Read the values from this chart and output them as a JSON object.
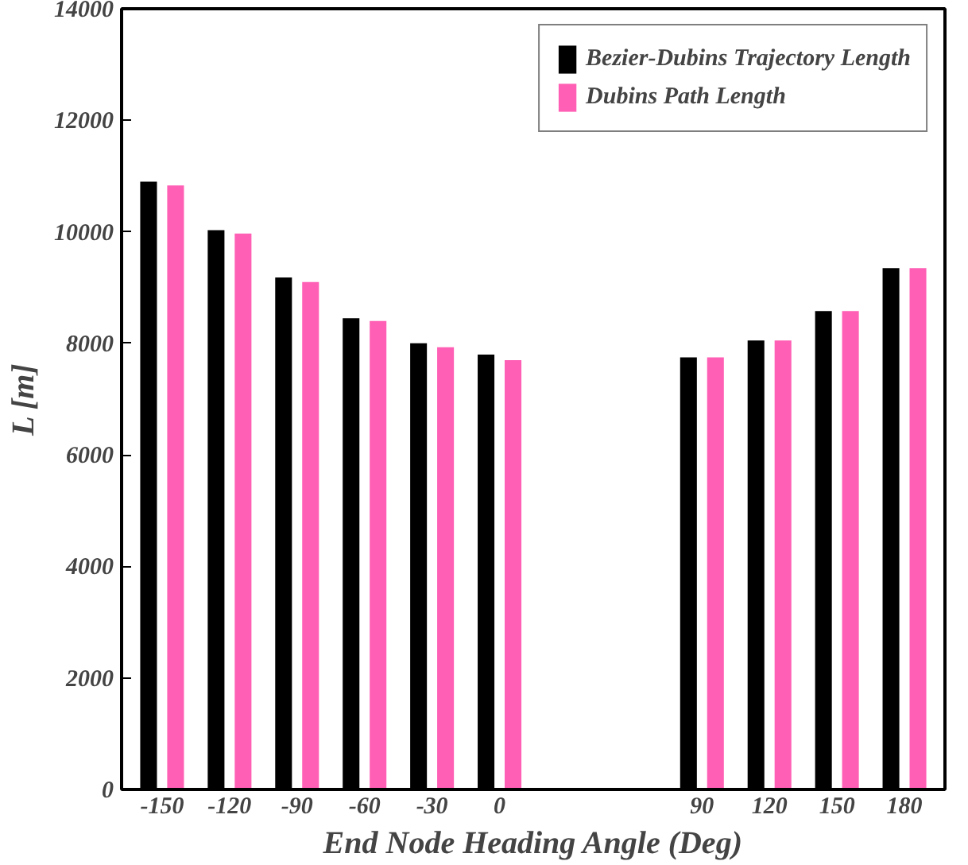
{
  "chart_data": {
    "type": "bar",
    "xlabel": "End Node Heading Angle (Deg)",
    "ylabel": "L [m]",
    "categories": [
      "-150",
      "-120",
      "-90",
      "-60",
      "-30",
      "0",
      null,
      null,
      "90",
      "120",
      "150",
      "180"
    ],
    "series": [
      {
        "name": "Bezier-Dubins Trajectory Length",
        "color": "#000000",
        "values": [
          10900,
          10030,
          9180,
          8450,
          8000,
          7800,
          null,
          null,
          7750,
          8050,
          8580,
          9350
        ]
      },
      {
        "name": "Dubins Path Length",
        "color": "#ff5fb4",
        "values": [
          10830,
          9970,
          9100,
          8400,
          7930,
          7700,
          null,
          null,
          7750,
          8050,
          8580,
          9350
        ]
      }
    ],
    "ylim": [
      0,
      14000
    ],
    "yticks": [
      0,
      2000,
      4000,
      6000,
      8000,
      10000,
      12000,
      14000
    ],
    "legend": "top right",
    "grid": false
  }
}
